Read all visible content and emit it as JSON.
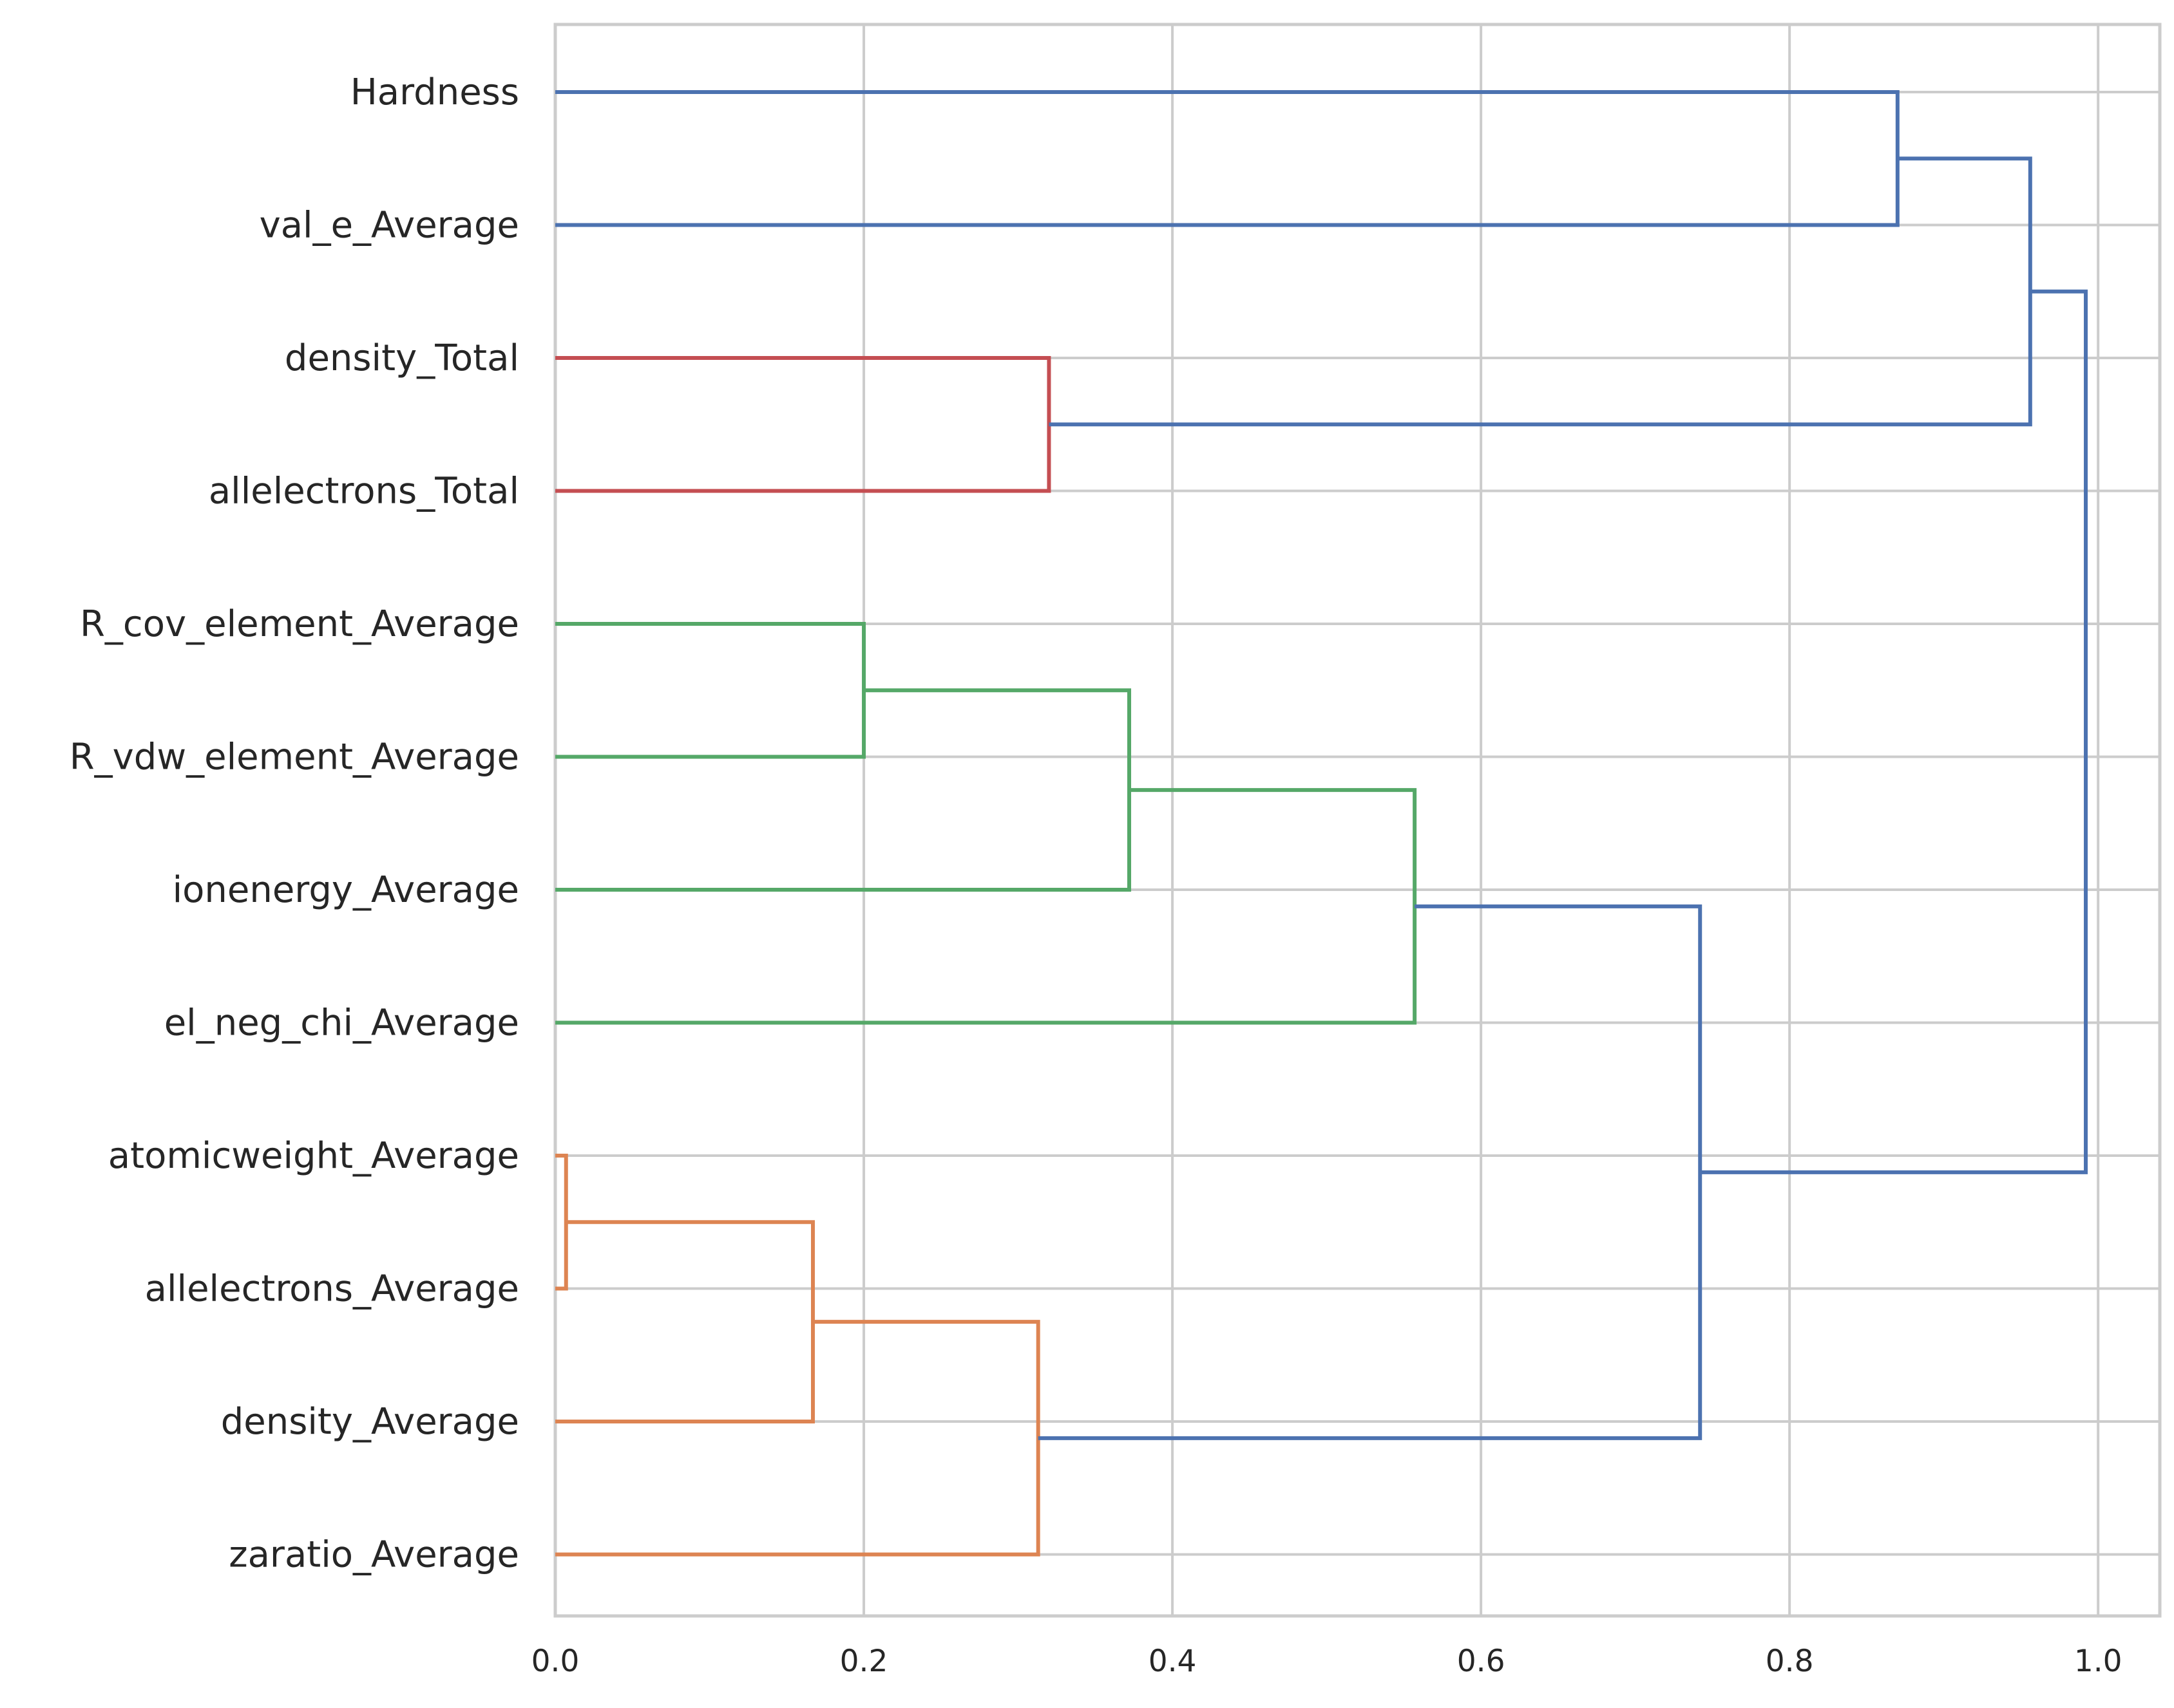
{
  "chart_data": {
    "type": "dendrogram",
    "orientation": "horizontal",
    "title": "",
    "xlabel": "",
    "ylabel": "",
    "xlim": [
      0.0,
      1.04
    ],
    "x_ticks": [
      "0.0",
      "0.2",
      "0.4",
      "0.6",
      "0.8",
      "1.0"
    ],
    "x_tick_values": [
      0.0,
      0.2,
      0.4,
      0.6,
      0.8,
      1.0
    ],
    "grid": true,
    "leaves": [
      "Hardness",
      "val_e_Average",
      "density_Total",
      "allelectrons_Total",
      "R_cov_element_Average",
      "R_vdw_element_Average",
      "ionenergy_Average",
      "el_neg_chi_Average",
      "atomicweight_Average",
      "allelectrons_Average",
      "density_Average",
      "zaratio_Average"
    ],
    "cluster_colors": {
      "C0": "#4c72b0",
      "C1": "#dd8452",
      "C2": "#55a868",
      "C3": "#c44e52"
    },
    "merges": [
      {
        "a": "atomicweight_Average",
        "b": "allelectrons_Average",
        "distance": 0.007,
        "color": "C1"
      },
      {
        "a": "M1",
        "b": "density_Average",
        "distance": 0.167,
        "color": "C1"
      },
      {
        "a": "M2",
        "b": "zaratio_Average",
        "distance": 0.313,
        "color": "C1"
      },
      {
        "a": "R_cov_element_Average",
        "b": "R_vdw_element_Average",
        "distance": 0.2,
        "color": "C2"
      },
      {
        "a": "M4",
        "b": "ionenergy_Average",
        "distance": 0.372,
        "color": "C2"
      },
      {
        "a": "M5",
        "b": "el_neg_chi_Average",
        "distance": 0.557,
        "color": "C2"
      },
      {
        "a": "M6",
        "b": "M3",
        "distance": 0.742,
        "color": "C0"
      },
      {
        "a": "density_Total",
        "b": "allelectrons_Total",
        "distance": 0.32,
        "color": "C3"
      },
      {
        "a": "Hardness",
        "b": "val_e_Average",
        "distance": 0.87,
        "color": "C0"
      },
      {
        "a": "M9",
        "b": "M8",
        "distance": 0.956,
        "color": "C0"
      },
      {
        "a": "M10",
        "b": "M7",
        "distance": 0.992,
        "color": "C0"
      }
    ]
  }
}
